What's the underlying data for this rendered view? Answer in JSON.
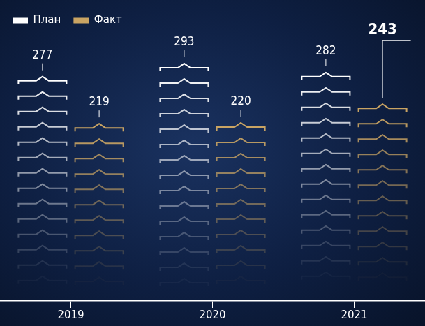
{
  "chart_data": {
    "type": "bar",
    "categories": [
      "2019",
      "2020",
      "2021"
    ],
    "series": [
      {
        "name": "План",
        "color": "#ffffff",
        "values": [
          277,
          293,
          282
        ]
      },
      {
        "name": "Факт",
        "color": "#c9a463",
        "values": [
          219,
          220,
          243
        ]
      }
    ],
    "ylim": [
      0,
      330
    ],
    "legend": "top-left",
    "data_labels": true,
    "tick_labels": "x",
    "grid": false
  }
}
